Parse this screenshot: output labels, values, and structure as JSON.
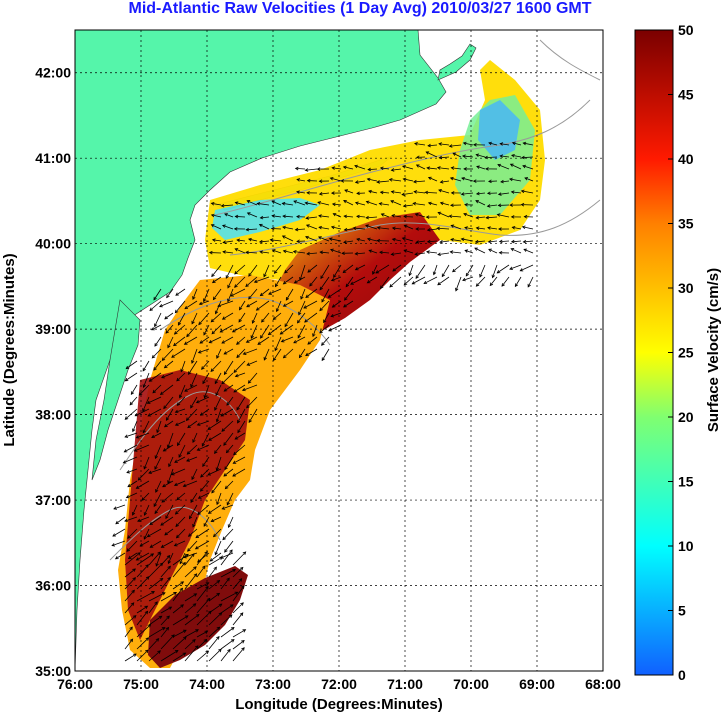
{
  "map": {
    "title": "Mid-Atlantic Raw Velocities (1 Day Avg) 2010/03/27 1600 GMT",
    "xlabel": "Longitude (Degrees:Minutes)",
    "ylabel": "Latitude (Degrees:Minutes)",
    "x_ticks": [
      "76:00",
      "75:00",
      "74:00",
      "73:00",
      "72:00",
      "71:00",
      "70:00",
      "69:00",
      "68:00"
    ],
    "y_ticks": [
      "35:00",
      "36:00",
      "37:00",
      "38:00",
      "39:00",
      "40:00",
      "41:00",
      "42:00"
    ],
    "lon_range": [
      -76,
      -68
    ],
    "lat_range": [
      35,
      42.5
    ],
    "colors": {
      "land": "#55f5aa",
      "sea": "#ffffff",
      "grid": "#000000",
      "bathymetry": "#9a9a9a",
      "title": "#1a1aff"
    }
  },
  "colorbar": {
    "label": "Surface Velocity (cm/s)",
    "ticks": [
      "0",
      "5",
      "10",
      "15",
      "20",
      "25",
      "30",
      "35",
      "40",
      "45",
      "50"
    ],
    "range": [
      0,
      50
    ]
  }
}
